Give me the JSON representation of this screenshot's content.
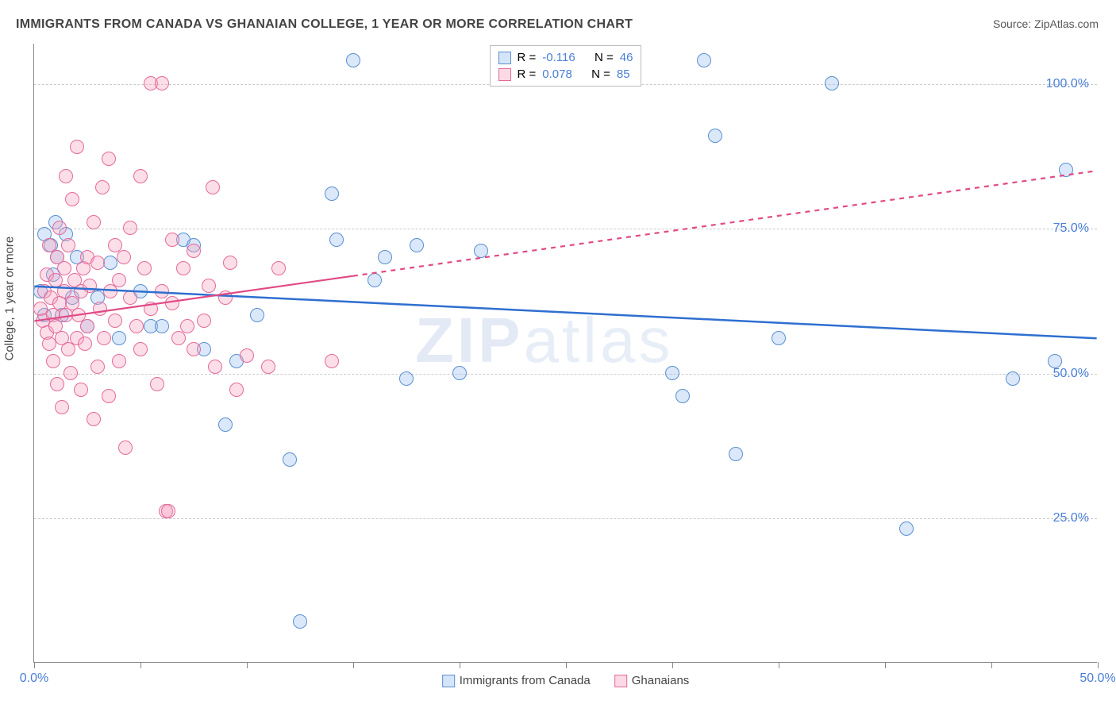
{
  "title": "IMMIGRANTS FROM CANADA VS GHANAIAN COLLEGE, 1 YEAR OR MORE CORRELATION CHART",
  "source_label": "Source: ",
  "source_name": "ZipAtlas.com",
  "yaxis_label": "College, 1 year or more",
  "watermark_bold": "ZIP",
  "watermark_light": "atlas",
  "chart": {
    "type": "scatter",
    "xlim": [
      0,
      50
    ],
    "ylim": [
      0,
      107
    ],
    "xticks": [
      0,
      5,
      10,
      15,
      20,
      25,
      30,
      35,
      40,
      45,
      50
    ],
    "xtick_labels": {
      "0": "0.0%",
      "50": "50.0%"
    },
    "yticks": [
      25,
      50,
      75,
      100
    ],
    "ytick_labels": {
      "25": "25.0%",
      "50": "50.0%",
      "75": "75.0%",
      "100": "100.0%"
    },
    "background_color": "#ffffff",
    "grid_color": "#cccccc",
    "axis_color": "#888888",
    "tick_label_color": "#4a7fd8",
    "series": [
      {
        "name": "Immigrants from Canada",
        "legend_label": "Immigrants from Canada",
        "color_fill": "rgba(150,190,240,0.35)",
        "color_stroke": "#5a8fd0",
        "marker_size": 18,
        "R_label": "R = ",
        "R": "-0.116",
        "N_label": "N = ",
        "N": "46",
        "trend": {
          "x1": 0,
          "y1": 65,
          "x2": 50,
          "y2": 56,
          "dash_from_x": null,
          "stroke": "#2f6fd0",
          "stroke_width": 2.5
        },
        "points": [
          [
            0.3,
            64
          ],
          [
            0.5,
            60
          ],
          [
            0.5,
            74
          ],
          [
            0.8,
            72
          ],
          [
            0.9,
            67
          ],
          [
            1.0,
            76
          ],
          [
            1.1,
            70
          ],
          [
            1.3,
            60
          ],
          [
            1.5,
            74
          ],
          [
            1.8,
            63
          ],
          [
            2.0,
            70
          ],
          [
            2.5,
            58
          ],
          [
            3.0,
            63
          ],
          [
            3.6,
            69
          ],
          [
            4.0,
            56
          ],
          [
            5.0,
            64
          ],
          [
            5.5,
            58
          ],
          [
            6.0,
            58
          ],
          [
            7.0,
            73
          ],
          [
            7.5,
            72
          ],
          [
            8.0,
            54
          ],
          [
            9.0,
            41
          ],
          [
            9.5,
            52
          ],
          [
            10.5,
            60
          ],
          [
            12.0,
            35
          ],
          [
            12.5,
            7
          ],
          [
            14.0,
            81
          ],
          [
            14.2,
            73
          ],
          [
            15.0,
            104
          ],
          [
            16.0,
            66
          ],
          [
            16.5,
            70
          ],
          [
            17.5,
            49
          ],
          [
            18.0,
            72
          ],
          [
            20.0,
            50
          ],
          [
            21.0,
            71
          ],
          [
            30.0,
            50
          ],
          [
            30.5,
            46
          ],
          [
            31.5,
            104
          ],
          [
            32.0,
            91
          ],
          [
            33.0,
            36
          ],
          [
            35.0,
            56
          ],
          [
            37.5,
            100
          ],
          [
            41.0,
            23
          ],
          [
            46.0,
            49
          ],
          [
            48.0,
            52
          ],
          [
            48.5,
            85
          ]
        ]
      },
      {
        "name": "Ghanaians",
        "legend_label": "Ghanaians",
        "color_fill": "rgba(245,160,190,0.35)",
        "color_stroke": "#e56a9a",
        "marker_size": 18,
        "R_label": "R = ",
        "R": "0.078",
        "N_label": "N = ",
        "N": "85",
        "trend": {
          "x1": 0,
          "y1": 59,
          "x2": 50,
          "y2": 85,
          "dash_from_x": 15,
          "stroke": "#e04a85",
          "stroke_width": 2.2
        },
        "points": [
          [
            0.3,
            61
          ],
          [
            0.4,
            59
          ],
          [
            0.5,
            64
          ],
          [
            0.6,
            57
          ],
          [
            0.6,
            67
          ],
          [
            0.7,
            72
          ],
          [
            0.7,
            55
          ],
          [
            0.8,
            63
          ],
          [
            0.9,
            60
          ],
          [
            0.9,
            52
          ],
          [
            1.0,
            58
          ],
          [
            1.0,
            66
          ],
          [
            1.1,
            70
          ],
          [
            1.1,
            48
          ],
          [
            1.2,
            62
          ],
          [
            1.2,
            75
          ],
          [
            1.3,
            56
          ],
          [
            1.3,
            44
          ],
          [
            1.4,
            64
          ],
          [
            1.4,
            68
          ],
          [
            1.5,
            60
          ],
          [
            1.5,
            84
          ],
          [
            1.6,
            54
          ],
          [
            1.6,
            72
          ],
          [
            1.7,
            50
          ],
          [
            1.8,
            62
          ],
          [
            1.8,
            80
          ],
          [
            1.9,
            66
          ],
          [
            2.0,
            56
          ],
          [
            2.0,
            89
          ],
          [
            2.1,
            60
          ],
          [
            2.2,
            47
          ],
          [
            2.2,
            64
          ],
          [
            2.3,
            68
          ],
          [
            2.4,
            55
          ],
          [
            2.5,
            70
          ],
          [
            2.5,
            58
          ],
          [
            2.6,
            65
          ],
          [
            2.8,
            76
          ],
          [
            2.8,
            42
          ],
          [
            3.0,
            51
          ],
          [
            3.0,
            69
          ],
          [
            3.1,
            61
          ],
          [
            3.2,
            82
          ],
          [
            3.3,
            56
          ],
          [
            3.5,
            87
          ],
          [
            3.5,
            46
          ],
          [
            3.6,
            64
          ],
          [
            3.8,
            59
          ],
          [
            3.8,
            72
          ],
          [
            4.0,
            66
          ],
          [
            4.0,
            52
          ],
          [
            4.2,
            70
          ],
          [
            4.3,
            37
          ],
          [
            4.5,
            63
          ],
          [
            4.5,
            75
          ],
          [
            4.8,
            58
          ],
          [
            5.0,
            84
          ],
          [
            5.0,
            54
          ],
          [
            5.2,
            68
          ],
          [
            5.5,
            61
          ],
          [
            5.5,
            100
          ],
          [
            5.8,
            48
          ],
          [
            6.0,
            100
          ],
          [
            6.0,
            64
          ],
          [
            6.2,
            26
          ],
          [
            6.3,
            26
          ],
          [
            6.5,
            62
          ],
          [
            6.5,
            73
          ],
          [
            6.8,
            56
          ],
          [
            7.0,
            68
          ],
          [
            7.2,
            58
          ],
          [
            7.5,
            71
          ],
          [
            7.5,
            54
          ],
          [
            8.0,
            59
          ],
          [
            8.2,
            65
          ],
          [
            8.4,
            82
          ],
          [
            8.5,
            51
          ],
          [
            9.0,
            63
          ],
          [
            9.2,
            69
          ],
          [
            9.5,
            47
          ],
          [
            10.0,
            53
          ],
          [
            11.0,
            51
          ],
          [
            11.5,
            68
          ],
          [
            14.0,
            52
          ]
        ]
      }
    ]
  }
}
